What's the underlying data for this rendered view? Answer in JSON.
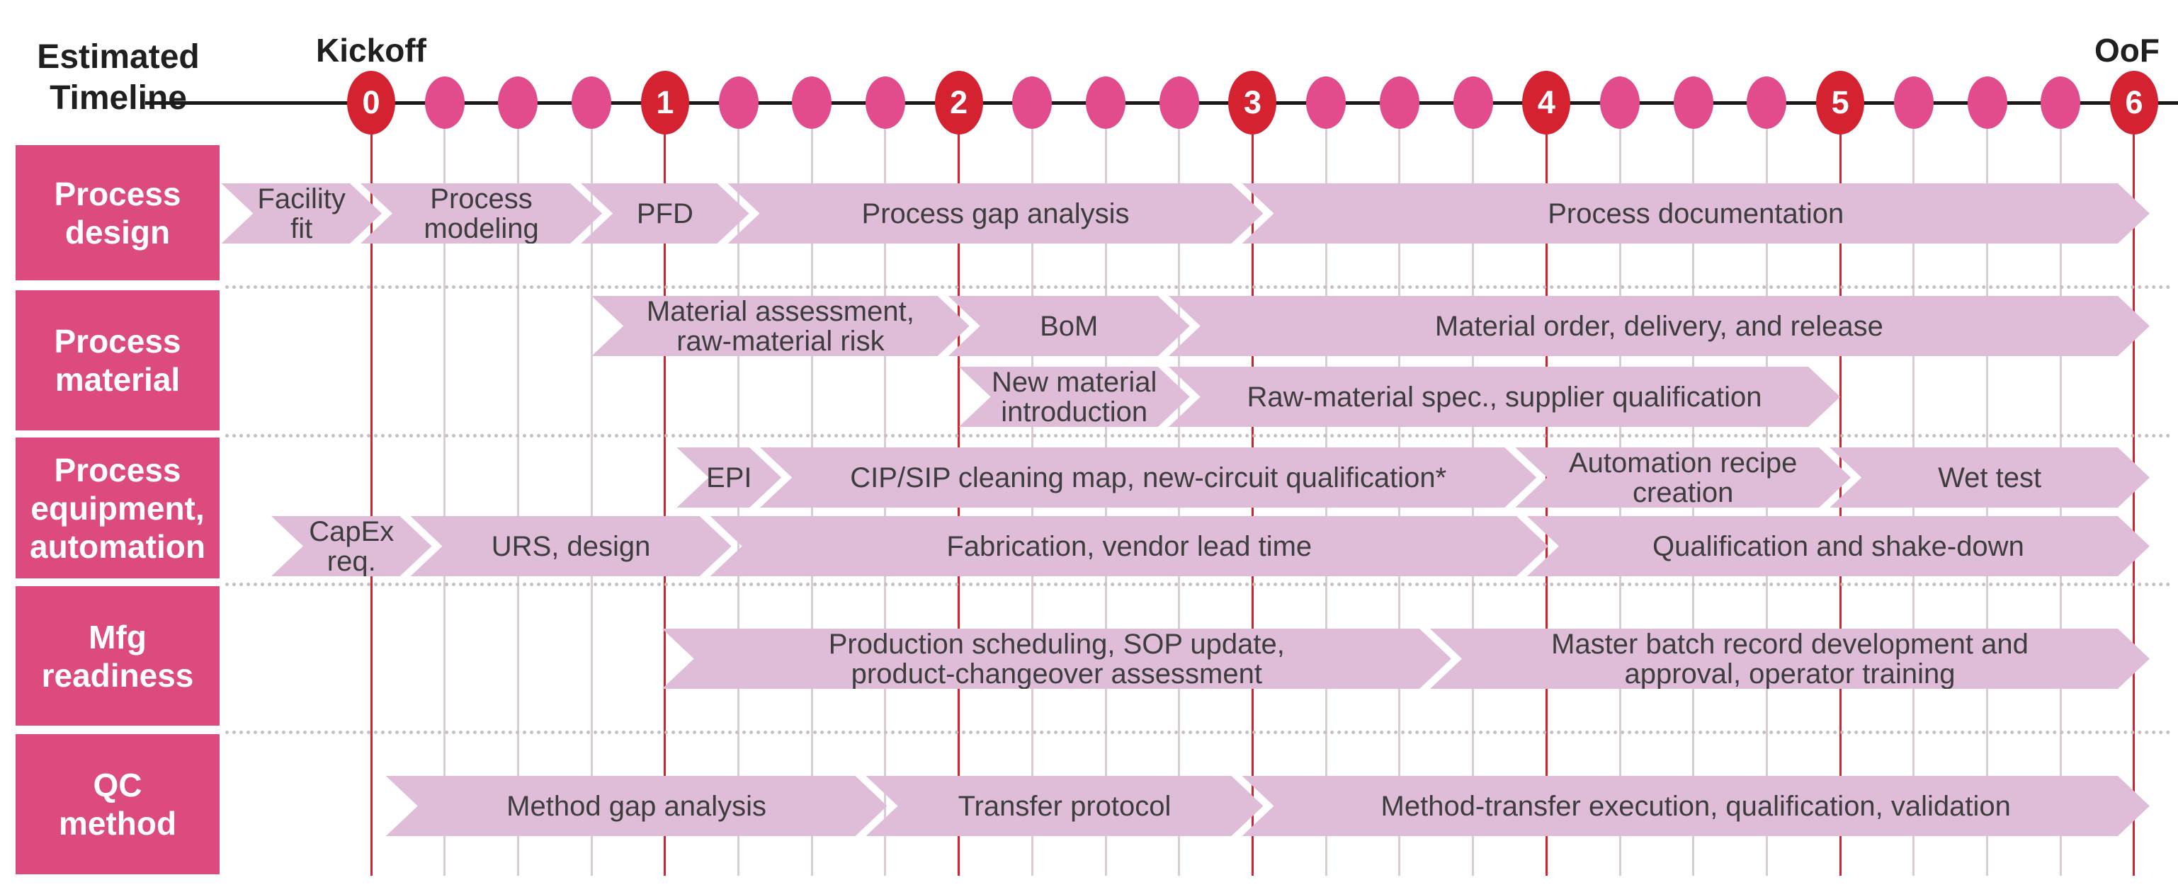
{
  "header": {
    "left_title": "Estimated\nTimeline",
    "start_label": "Kickoff",
    "end_label": "OoF"
  },
  "colors": {
    "lane_label_bg": "#dc4a80",
    "lane_label_text": "#ffffff",
    "bar_fill": "#dfbdd9",
    "bar_text": "#3d3d3d",
    "major_dot": "#d52231",
    "minor_dot": "#e24b8c",
    "major_gridline": "#d5232e",
    "minor_gridline": "#d8cdd2",
    "axis_line": "#1d191a",
    "separator": "#c6c0c0",
    "header_text": "#1f1f1f"
  },
  "chart_data": {
    "type": "gantt-timeline",
    "title": "Estimated Timeline",
    "axis": {
      "min": 0,
      "max": 6,
      "major_ticks": [
        0,
        1,
        2,
        3,
        4,
        5,
        6
      ],
      "tick_labels": [
        "0",
        "1",
        "2",
        "3",
        "4",
        "5",
        "6"
      ],
      "minor_tick_step": 0.25,
      "start_annotation": "Kickoff",
      "end_annotation": "OoF"
    },
    "lanes": [
      {
        "name": "Process\ndesign",
        "rows": [
          [
            {
              "label": "Facility\nfit",
              "start": -0.51,
              "end": 0
            },
            {
              "label": "Process\nmodeling",
              "start": 0,
              "end": 0.75
            },
            {
              "label": "PFD",
              "start": 0.75,
              "end": 1.25
            },
            {
              "label": "Process gap analysis",
              "start": 1.25,
              "end": 3.0
            },
            {
              "label": "Process documentation",
              "start": 3.0,
              "end": 6.0,
              "final": true
            }
          ]
        ]
      },
      {
        "name": "Process\nmaterial",
        "rows": [
          [
            {
              "label": "Material assessment,\nraw-material risk",
              "start": 0.75,
              "end": 2.0
            },
            {
              "label": "BoM",
              "start": 2.0,
              "end": 2.75
            },
            {
              "label": "Material order, delivery, and release",
              "start": 2.75,
              "end": 6.0,
              "final": true
            }
          ],
          [
            {
              "label": "New material\nintroduction",
              "start": 2.0,
              "end": 2.75
            },
            {
              "label": "Raw-material spec., supplier qualification",
              "start": 2.75,
              "end": 5.0
            }
          ]
        ]
      },
      {
        "name": "Process\nequipment,\nautomation",
        "rows": [
          [
            {
              "label": "EPI",
              "start": 1.04,
              "end": 1.36
            },
            {
              "label": "CIP/SIP cleaning map, new-circuit qualification*",
              "start": 1.36,
              "end": 3.93
            },
            {
              "label": "Automation recipe\ncreation",
              "start": 3.93,
              "end": 5.0
            },
            {
              "label": "Wet test",
              "start": 5.0,
              "end": 6.0,
              "final": true
            }
          ],
          [
            {
              "label": "CapEx\nreq.",
              "start": -0.34,
              "end": 0.17
            },
            {
              "label": "URS, design",
              "start": 0.17,
              "end": 1.19
            },
            {
              "label": "Fabrication, vendor lead time",
              "start": 1.19,
              "end": 3.97
            },
            {
              "label": "Qualification and shake-down",
              "start": 3.97,
              "end": 6.0,
              "final": true
            }
          ]
        ]
      },
      {
        "name": "Mfg\nreadiness",
        "rows": [
          [
            {
              "label": "Production scheduling, SOP update,\nproduct-changeover assessment",
              "start": 0.99,
              "end": 3.64
            },
            {
              "label": "Master batch record development and\napproval, operator training",
              "start": 3.64,
              "end": 6.0,
              "final": true
            }
          ]
        ]
      },
      {
        "name": "QC\nmethod",
        "rows": [
          [
            {
              "label": "Method gap analysis",
              "start": 0.05,
              "end": 1.72
            },
            {
              "label": "Transfer protocol",
              "start": 1.72,
              "end": 3.0
            },
            {
              "label": "Method-transfer execution, qualification, validation",
              "start": 3.0,
              "end": 6.0,
              "final": true
            }
          ]
        ]
      }
    ]
  }
}
